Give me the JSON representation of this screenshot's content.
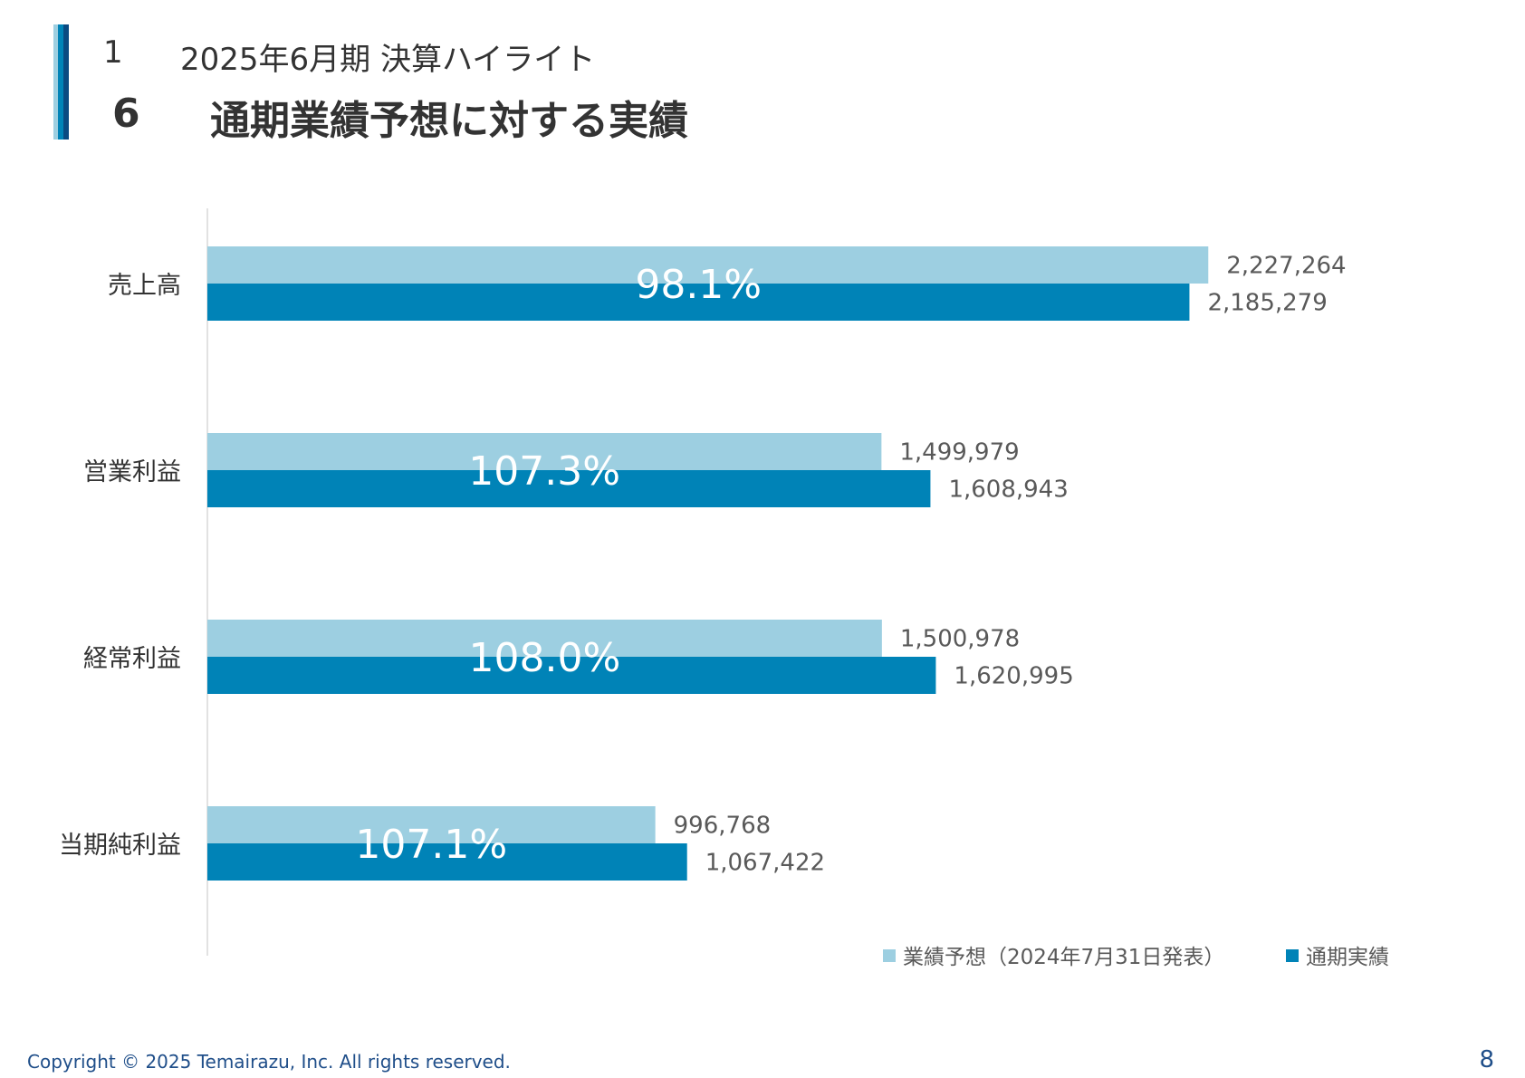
{
  "header": {
    "section_number": "1",
    "section_title": "2025年6月期  決算ハイライト",
    "sub_number": "6",
    "sub_title": "通期業績予想に対する実績"
  },
  "chart_data": {
    "type": "bar",
    "orientation": "horizontal",
    "categories": [
      "売上高",
      "営業利益",
      "経常利益",
      "当期純利益"
    ],
    "series": [
      {
        "name": "業績予想（2024年7月31日発表）",
        "color": "#9dcfe1",
        "values": [
          2227264,
          1499979,
          1500978,
          996768
        ]
      },
      {
        "name": "通期実績",
        "color": "#0083b7",
        "values": [
          2185279,
          1608943,
          1620995,
          1067422
        ]
      }
    ],
    "value_labels": [
      [
        "2,227,264",
        "1,499,979",
        "1,500,978",
        "996,768"
      ],
      [
        "2,185,279",
        "1,608,943",
        "1,620,995",
        "1,067,422"
      ]
    ],
    "achievement_labels": [
      "98.1%",
      "107.3%",
      "108.0%",
      "107.1%"
    ],
    "xlim": [
      0,
      2400000
    ],
    "legend_position": "bottom-right",
    "grid": false
  },
  "footer": {
    "copyright": "Copyright © 2025 Temairazu, Inc. All rights reserved.",
    "page_number": "8"
  }
}
